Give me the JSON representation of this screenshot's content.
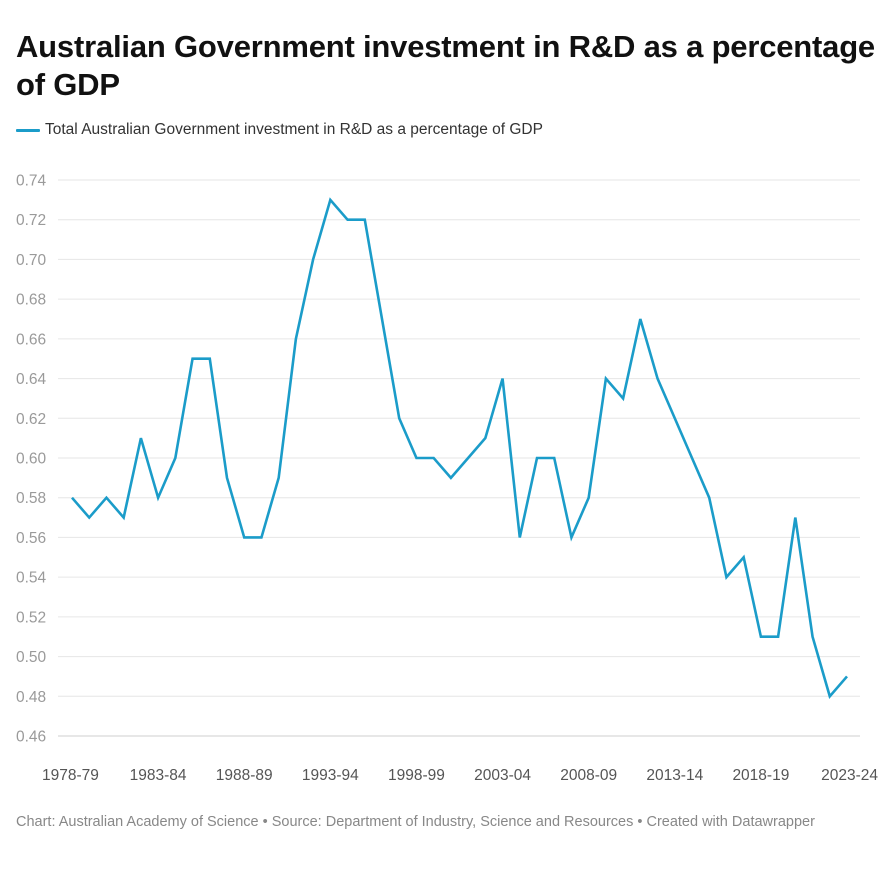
{
  "title": "Australian Government investment in R&D as a percentage of GDP",
  "legend": {
    "label": "Total Australian Government investment in R&D as a percentage of GDP",
    "color": "#1b9cc9"
  },
  "footer": {
    "text": "Chart: Australian Academy of Science • Source: Department of Industry, Science and Resources • Created with Datawrapper"
  },
  "chart_data": {
    "type": "line",
    "title": "Australian Government investment in R&D as a percentage of GDP",
    "xlabel": "",
    "ylabel": "",
    "ylim": [
      0.46,
      0.74
    ],
    "yticks": [
      "0.74",
      "0.72",
      "0.70",
      "0.68",
      "0.66",
      "0.64",
      "0.62",
      "0.60",
      "0.58",
      "0.56",
      "0.54",
      "0.52",
      "0.50",
      "0.48",
      "0.46"
    ],
    "xticks": [
      "1978-79",
      "1983-84",
      "1988-89",
      "1993-94",
      "1998-99",
      "2003-04",
      "2008-09",
      "2013-14",
      "2018-19",
      "2023-24"
    ],
    "grid": true,
    "legend_position": "top-left",
    "categories": [
      "1978-79",
      "1979-80",
      "1980-81",
      "1981-82",
      "1982-83",
      "1983-84",
      "1984-85",
      "1985-86",
      "1986-87",
      "1987-88",
      "1988-89",
      "1989-90",
      "1990-91",
      "1991-92",
      "1992-93",
      "1993-94",
      "1994-95",
      "1995-96",
      "1996-97",
      "1997-98",
      "1998-99",
      "1999-00",
      "2000-01",
      "2001-02",
      "2002-03",
      "2003-04",
      "2004-05",
      "2005-06",
      "2006-07",
      "2007-08",
      "2008-09",
      "2009-10",
      "2010-11",
      "2011-12",
      "2012-13",
      "2013-14",
      "2014-15",
      "2015-16",
      "2016-17",
      "2017-18",
      "2018-19",
      "2019-20",
      "2020-21",
      "2021-22",
      "2022-23",
      "2023-24"
    ],
    "series": [
      {
        "name": "Total Australian Government investment in R&D as a percentage of GDP",
        "color": "#1b9cc9",
        "values": [
          0.58,
          0.57,
          0.58,
          0.57,
          0.61,
          0.58,
          0.6,
          0.65,
          0.65,
          0.59,
          0.56,
          0.56,
          0.59,
          0.66,
          0.7,
          0.73,
          0.72,
          0.72,
          0.67,
          0.62,
          0.6,
          0.6,
          0.59,
          0.6,
          0.61,
          0.64,
          0.56,
          0.6,
          0.6,
          0.56,
          0.58,
          0.64,
          0.63,
          0.67,
          0.64,
          0.62,
          0.6,
          0.58,
          0.54,
          0.55,
          0.51,
          0.51,
          0.57,
          0.51,
          0.48,
          0.49
        ]
      }
    ]
  }
}
